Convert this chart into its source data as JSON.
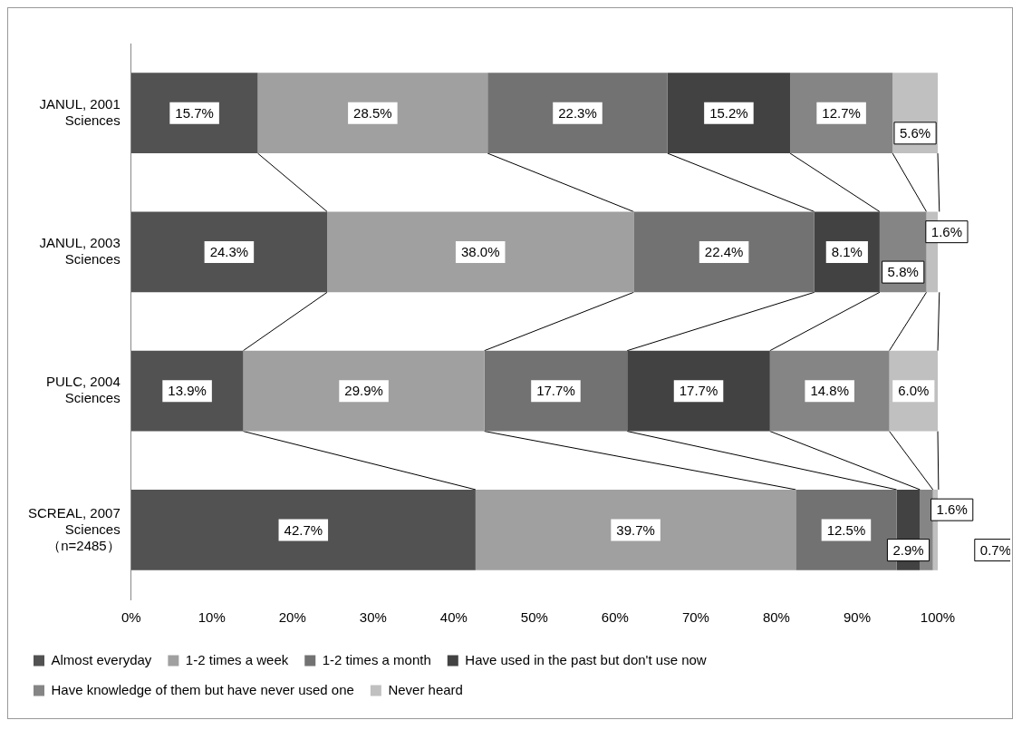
{
  "chart_data": {
    "type": "bar",
    "orientation": "horizontal",
    "stacked": true,
    "categories": [
      "JANUL, 2001\nSciences",
      "JANUL, 2003\nSciences",
      "PULC, 2004\nSciences",
      "SCREAL, 2007\nSciences\n（n=2485）"
    ],
    "series": [
      {
        "name": "Almost everyday",
        "color": "#525252",
        "values": [
          15.7,
          24.3,
          13.9,
          42.7
        ],
        "value_labels": [
          "15.7%",
          "24.3%",
          "13.9%",
          "42.7%"
        ]
      },
      {
        "name": "1-2 times a week",
        "color": "#a0a0a0",
        "values": [
          28.5,
          38.0,
          29.9,
          39.7
        ],
        "value_labels": [
          "28.5%",
          "38.0%",
          "29.9%",
          "39.7%"
        ]
      },
      {
        "name": "1-2 times a month",
        "color": "#727272",
        "values": [
          22.3,
          22.4,
          17.7,
          12.5
        ],
        "value_labels": [
          "22.3%",
          "22.4%",
          "17.7%",
          "12.5%"
        ]
      },
      {
        "name": "Have used in the past but don't use now",
        "color": "#424242",
        "values": [
          15.2,
          8.1,
          17.7,
          2.9
        ],
        "value_labels": [
          "15.2%",
          "8.1%",
          "17.7%",
          "2.9%"
        ]
      },
      {
        "name": "Have knowledge of them but have never used one",
        "color": "#858585",
        "values": [
          12.7,
          5.8,
          14.8,
          1.6
        ],
        "value_labels": [
          "12.7%",
          "5.8%",
          "14.8%",
          "1.6%"
        ]
      },
      {
        "name": "Never heard",
        "color": "#c0c0c0",
        "values": [
          5.6,
          1.6,
          6.0,
          0.7
        ],
        "value_labels": [
          "5.6%",
          "1.6%",
          "6.0%",
          "0.7%"
        ]
      }
    ],
    "xlim": [
      0,
      100
    ],
    "xticks": [
      {
        "value": 0,
        "label": "0%"
      },
      {
        "value": 10,
        "label": "10%"
      },
      {
        "value": 20,
        "label": "20%"
      },
      {
        "value": 30,
        "label": "30%"
      },
      {
        "value": 40,
        "label": "40%"
      },
      {
        "value": 50,
        "label": "50%"
      },
      {
        "value": 60,
        "label": "60%"
      },
      {
        "value": 70,
        "label": "70%"
      },
      {
        "value": 80,
        "label": "80%"
      },
      {
        "value": 90,
        "label": "90%"
      },
      {
        "value": 100,
        "label": "100%"
      }
    ],
    "grid": false,
    "legend": "bottom"
  }
}
